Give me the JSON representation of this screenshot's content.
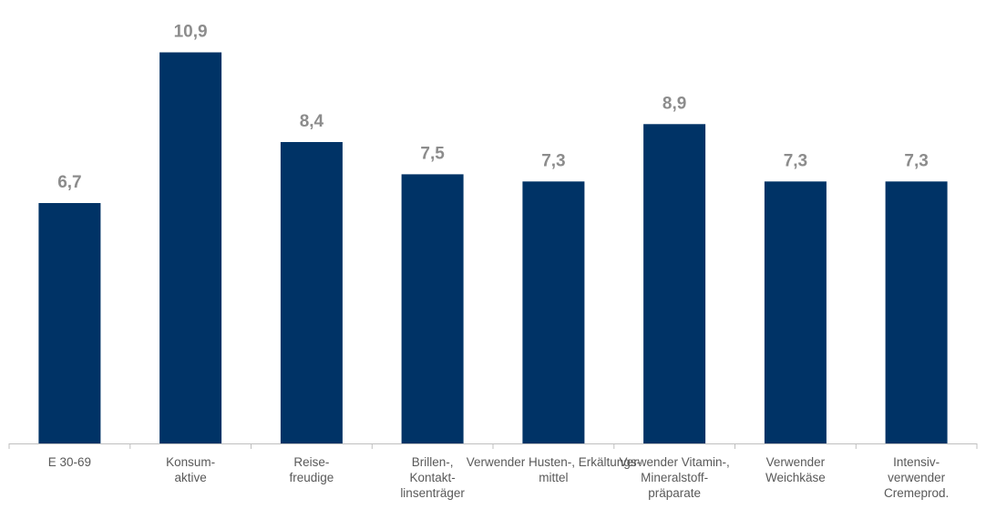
{
  "chart_data": {
    "type": "bar",
    "categories": [
      [
        "E 30-69"
      ],
      [
        "Konsum-",
        "aktive"
      ],
      [
        "Reise-",
        "freudige"
      ],
      [
        "Brillen-,",
        "Kontakt-",
        "linsenträger"
      ],
      [
        "Verwender Husten-, Erkältungs-",
        "mittel"
      ],
      [
        "Verwender Vitamin-,",
        "Mineralstoff-",
        "präparate"
      ],
      [
        "Verwender",
        "Weichkäse"
      ],
      [
        "Intensiv-",
        "verwender",
        "Cremeprod."
      ]
    ],
    "values": [
      6.7,
      10.9,
      8.4,
      7.5,
      7.3,
      8.9,
      7.3,
      7.3
    ],
    "value_labels": [
      "6,7",
      "10,9",
      "8,4",
      "7,5",
      "7,3",
      "8,9",
      "7,3",
      "7,3"
    ],
    "ylim": [
      0,
      11.8
    ],
    "grid": false,
    "colors": {
      "bar": "#003366",
      "value_label": "#8c8c8c",
      "tick_label": "#595959",
      "axis": "#bfbfbf"
    }
  }
}
